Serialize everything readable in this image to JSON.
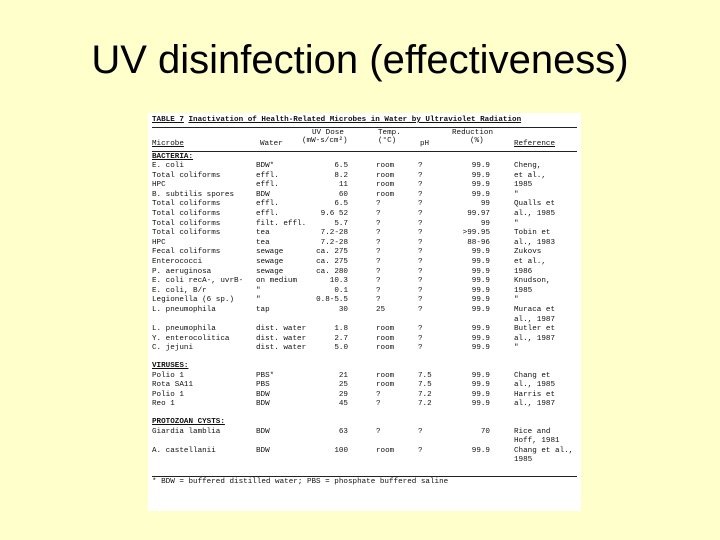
{
  "title": "UV disinfection (effectiveness)",
  "table": {
    "caption_number": "TABLE 7",
    "caption_text": "Inactivation of Health-Related Microbes in Water by Ultraviolet Radiation",
    "headers": {
      "dose_line1": "UV Dose",
      "dose_line2": "(mW-s/cm²)",
      "temp_line1": "Temp.",
      "temp_line2": "(°C)",
      "red_line1": "Reduction",
      "red_line2": "(%)",
      "microbe": "Microbe",
      "water": "Water",
      "ph": "pH",
      "reference": "Reference"
    },
    "sections": [
      {
        "label": "BACTERIA:",
        "rows": [
          {
            "microbe": "E. coli",
            "water": "BDW*",
            "dose": "6.5",
            "temp": "room",
            "ph": "?",
            "reduction": "99.9",
            "reference": "Cheng,"
          },
          {
            "microbe": "Total coliforms",
            "water": "effl.",
            "dose": "8.2",
            "temp": "room",
            "ph": "?",
            "reduction": "99.9",
            "reference": "et al.,"
          },
          {
            "microbe": "HPC",
            "water": "effl.",
            "dose": "11",
            "temp": "room",
            "ph": "?",
            "reduction": "99.9",
            "reference": "1985"
          },
          {
            "microbe": "B. subtilis spores",
            "water": "BDW",
            "dose": "60",
            "temp": "room",
            "ph": "?",
            "reduction": "99.9",
            "reference": "\""
          },
          {
            "microbe": "Total coliforms",
            "water": "effl.",
            "dose": "6.5",
            "temp": "?",
            "ph": "?",
            "reduction": "99",
            "reference": "Qualls et"
          },
          {
            "microbe": "Total coliforms",
            "water": "effl.",
            "dose": "9.6 52",
            "temp": "?",
            "ph": "?",
            "reduction": "99.97",
            "reference": "al., 1985"
          },
          {
            "microbe": "Total coliforms",
            "water": "filt. effl.",
            "dose": "5.7",
            "temp": "?",
            "ph": "?",
            "reduction": "99",
            "reference": "\""
          },
          {
            "microbe": "Total coliforms",
            "water": "tea",
            "dose": "7.2-28",
            "temp": "?",
            "ph": "?",
            "reduction": ">99.95",
            "reference": "Tobin et"
          },
          {
            "microbe": "HPC",
            "water": "tea",
            "dose": "7.2-28",
            "temp": "?",
            "ph": "?",
            "reduction": "88-96",
            "reference": "al., 1983"
          },
          {
            "microbe": "Fecal coliforms",
            "water": "sewage",
            "dose": "ca. 275",
            "temp": "?",
            "ph": "?",
            "reduction": "99.9",
            "reference": "Zukovs"
          },
          {
            "microbe": "Enterococci",
            "water": "sewage",
            "dose": "ca. 275",
            "temp": "?",
            "ph": "?",
            "reduction": "99.9",
            "reference": "et al.,"
          },
          {
            "microbe": "P. aeruginosa",
            "water": "sewage",
            "dose": "ca. 280",
            "temp": "?",
            "ph": "?",
            "reduction": "99.9",
            "reference": "1986"
          },
          {
            "microbe": "E. coli recA-, uvrB-",
            "water": "on medium",
            "dose": "10.3",
            "temp": "?",
            "ph": "?",
            "reduction": "99.9",
            "reference": "Knudson,"
          },
          {
            "microbe": "E. coli, B/r",
            "water": "\"",
            "dose": "0.1",
            "temp": "?",
            "ph": "?",
            "reduction": "99.9",
            "reference": "1985"
          },
          {
            "microbe": "Legionella (6 sp.)",
            "water": "\"",
            "dose": "0.8-5.5",
            "temp": "?",
            "ph": "?",
            "reduction": "99.9",
            "reference": "\""
          },
          {
            "microbe": "L. pneumophila",
            "water": "tap",
            "dose": "30",
            "temp": "25",
            "ph": "?",
            "reduction": "99.9",
            "reference": "Muraca et"
          },
          {
            "microbe": "",
            "water": "",
            "dose": "",
            "temp": "",
            "ph": "",
            "reduction": "",
            "reference": "al., 1987"
          },
          {
            "microbe": "L. pneumophila",
            "water": "dist. water",
            "dose": "1.8",
            "temp": "room",
            "ph": "?",
            "reduction": "99.9",
            "reference": "Butler et"
          },
          {
            "microbe": "Y. enterocolitica",
            "water": "dist. water",
            "dose": "2.7",
            "temp": "room",
            "ph": "?",
            "reduction": "99.9",
            "reference": "al., 1987"
          },
          {
            "microbe": "C. jejuni",
            "water": "dist. water",
            "dose": "5.0",
            "temp": "room",
            "ph": "?",
            "reduction": "99.9",
            "reference": "\""
          }
        ]
      },
      {
        "label": "VIRUSES:",
        "rows": [
          {
            "microbe": "Polio 1",
            "water": "PBS*",
            "dose": "21",
            "temp": "room",
            "ph": "7.5",
            "reduction": "99.9",
            "reference": "Chang et"
          },
          {
            "microbe": "Rota SA11",
            "water": "PBS",
            "dose": "25",
            "temp": "room",
            "ph": "7.5",
            "reduction": "99.9",
            "reference": "al., 1985"
          },
          {
            "microbe": "Polio 1",
            "water": "BDW",
            "dose": "29",
            "temp": "?",
            "ph": "7.2",
            "reduction": "99.9",
            "reference": "Harris et"
          },
          {
            "microbe": "Reo 1",
            "water": "BDW",
            "dose": "45",
            "temp": "?",
            "ph": "7.2",
            "reduction": "99.9",
            "reference": "al., 1987"
          }
        ]
      },
      {
        "label": "PROTOZOAN CYSTS:",
        "rows": [
          {
            "microbe": "Giardia lamblia",
            "water": "BDW",
            "dose": "63",
            "temp": "?",
            "ph": "?",
            "reduction": "70",
            "reference": "Rice and"
          },
          {
            "microbe": "",
            "water": "",
            "dose": "",
            "temp": "",
            "ph": "",
            "reduction": "",
            "reference": "Hoff, 1981"
          },
          {
            "microbe": "A. castellanii",
            "water": "BDW",
            "dose": "100",
            "temp": "room",
            "ph": "?",
            "reduction": "99.9",
            "reference": "Chang et al.,"
          },
          {
            "microbe": "",
            "water": "",
            "dose": "",
            "temp": "",
            "ph": "",
            "reduction": "",
            "reference": "1985"
          }
        ]
      }
    ],
    "footnote": "* BDW = buffered distilled water; PBS = phosphate buffered saline"
  }
}
